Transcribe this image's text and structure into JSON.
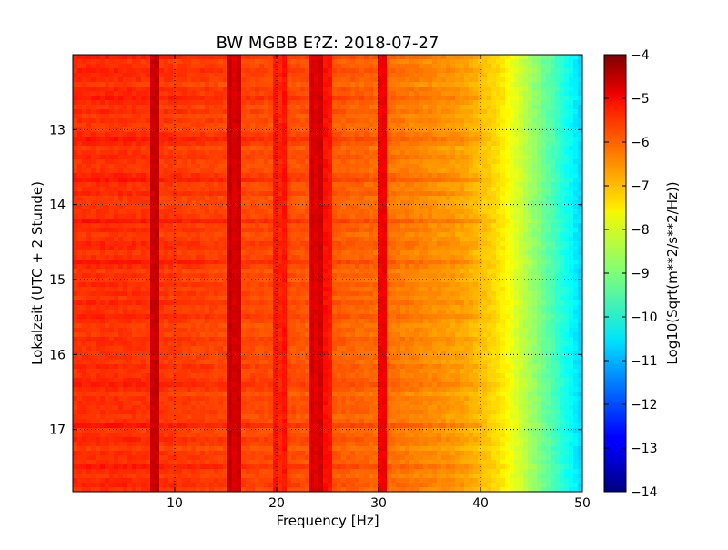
{
  "chart_data": {
    "type": "heatmap",
    "title": "BW MGBB E?Z: 2018-07-27",
    "xlabel": "Frequency [Hz]",
    "ylabel": "Lokalzeit (UTC + 2 Stunde)",
    "xlim": [
      0,
      50
    ],
    "ylim": [
      17.83,
      12.0
    ],
    "x_ticks": [
      10,
      20,
      30,
      40,
      50
    ],
    "y_ticks": [
      13,
      14,
      15,
      16,
      17
    ],
    "grid": true,
    "colormap": "jet",
    "colorbar": {
      "label": "Log10(Sqrt(m**2/s**2/Hz))",
      "range": [
        -14,
        -4
      ],
      "ticks": [
        -4,
        -5,
        -6,
        -7,
        -8,
        -9,
        -10,
        -11,
        -12,
        -13,
        -14
      ]
    },
    "spectral_profile": {
      "freq_hz": [
        0,
        5,
        10,
        15,
        20,
        25,
        30,
        35,
        38,
        40,
        42,
        43,
        44,
        45,
        46,
        47,
        48,
        49,
        50
      ],
      "log10_value": [
        -5.7,
        -5.7,
        -5.8,
        -5.9,
        -6.0,
        -6.1,
        -6.3,
        -6.6,
        -6.8,
        -7.1,
        -7.5,
        -7.9,
        -8.3,
        -8.7,
        -9.1,
        -9.5,
        -9.9,
        -10.3,
        -10.7
      ]
    },
    "peaks": [
      {
        "freq_hz": 8.0,
        "log10_value": -4.8
      },
      {
        "freq_hz": 15.9,
        "log10_value": -4.9
      },
      {
        "freq_hz": 20.3,
        "log10_value": -5.6
      },
      {
        "freq_hz": 23.8,
        "log10_value": -5.0
      },
      {
        "freq_hz": 25.1,
        "log10_value": -5.5
      },
      {
        "freq_hz": 30.3,
        "log10_value": -5.2
      }
    ]
  }
}
